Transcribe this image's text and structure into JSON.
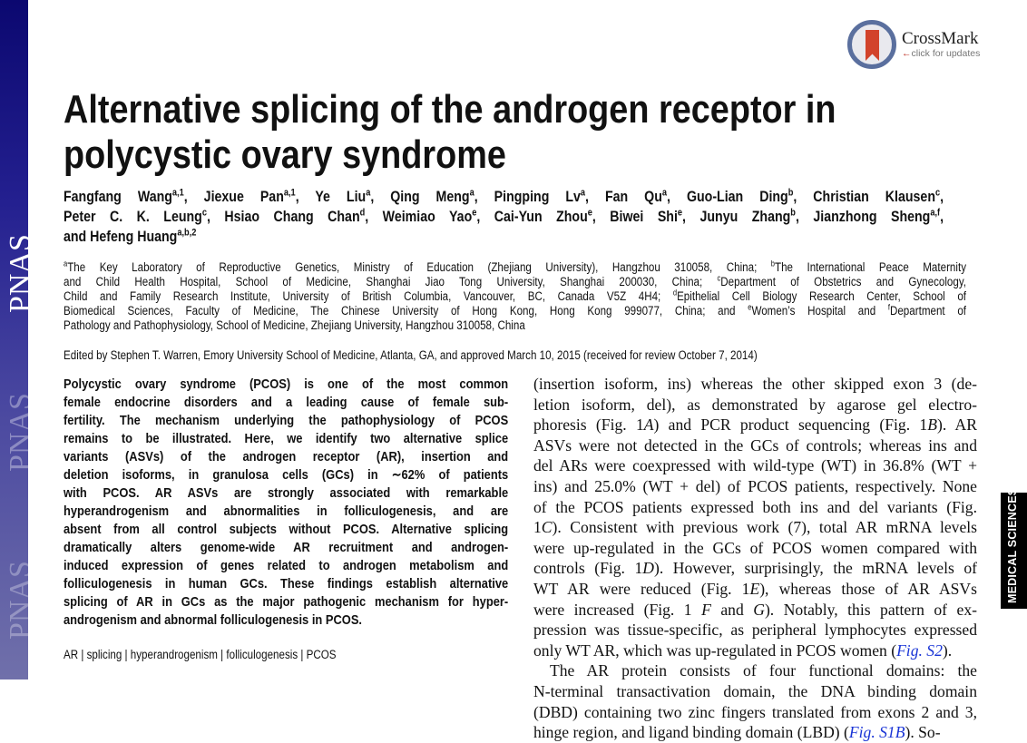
{
  "journal": {
    "logo_text": "PNAS",
    "section": "MEDICAL SCIENCES",
    "stripe_colors": [
      "#0b0870",
      "#7070aa"
    ]
  },
  "crossmark": {
    "title": "CrossMark",
    "subtitle": "click for updates",
    "ribbon_color": "#d2432b"
  },
  "title": [
    [
      "Alternative splicing of the androgen receptor in"
    ],
    [
      "polycystic ovary syndrome"
    ]
  ],
  "authors": [
    [
      {
        "t": "Fangfang Wang"
      },
      {
        "t": "a,1",
        "s": "sup"
      },
      {
        "t": ", Jiexue Pan"
      },
      {
        "t": "a,1",
        "s": "sup"
      },
      {
        "t": ", Ye Liu"
      },
      {
        "t": "a",
        "s": "sup"
      },
      {
        "t": ", Qing Meng"
      },
      {
        "t": "a",
        "s": "sup"
      },
      {
        "t": ", Pingping Lv"
      },
      {
        "t": "a",
        "s": "sup"
      },
      {
        "t": ", Fan Qu"
      },
      {
        "t": "a",
        "s": "sup"
      },
      {
        "t": ", Guo-Lian Ding"
      },
      {
        "t": "b",
        "s": "sup"
      },
      {
        "t": ", Christian Klausen"
      },
      {
        "t": "c",
        "s": "sup"
      },
      {
        "t": ","
      }
    ],
    [
      {
        "t": "Peter C. K. Leung"
      },
      {
        "t": "c",
        "s": "sup"
      },
      {
        "t": ", Hsiao Chang Chan"
      },
      {
        "t": "d",
        "s": "sup"
      },
      {
        "t": ", Weimiao Yao"
      },
      {
        "t": "e",
        "s": "sup"
      },
      {
        "t": ", Cai-Yun Zhou"
      },
      {
        "t": "e",
        "s": "sup"
      },
      {
        "t": ", Biwei Shi"
      },
      {
        "t": "e",
        "s": "sup"
      },
      {
        "t": ", Junyu Zhang"
      },
      {
        "t": "b",
        "s": "sup"
      },
      {
        "t": ", Jianzhong Sheng"
      },
      {
        "t": "a,f",
        "s": "sup"
      },
      {
        "t": ","
      }
    ],
    [
      {
        "t": "and Hefeng Huang"
      },
      {
        "t": "a,b,2",
        "s": "sup"
      }
    ]
  ],
  "affiliations": [
    [
      {
        "t": "a",
        "s": "sup"
      },
      {
        "t": "The Key Laboratory of Reproductive Genetics, Ministry of Education (Zhejiang University), Hangzhou 310058, China; "
      },
      {
        "t": "b",
        "s": "sup"
      },
      {
        "t": "The International Peace Maternity"
      }
    ],
    [
      {
        "t": "and Child Health Hospital, School of Medicine, Shanghai Jiao Tong University, Shanghai 200030, China; "
      },
      {
        "t": "c",
        "s": "sup"
      },
      {
        "t": "Department of Obstetrics and Gynecology,"
      }
    ],
    [
      {
        "t": "Child and Family Research Institute, University of British Columbia, Vancouver, BC, Canada V5Z 4H4; "
      },
      {
        "t": "d",
        "s": "sup"
      },
      {
        "t": "Epithelial Cell Biology Research Center, School of"
      }
    ],
    [
      {
        "t": "Biomedical Sciences, Faculty of Medicine, The Chinese University of Hong Kong, Hong Kong 999077, China; and "
      },
      {
        "t": "e",
        "s": "sup"
      },
      {
        "t": "Women’s Hospital and "
      },
      {
        "t": "f",
        "s": "sup"
      },
      {
        "t": "Department of"
      }
    ],
    [
      {
        "t": "Pathology and Pathophysiology, School of Medicine, Zhejiang University, Hangzhou 310058, China"
      }
    ]
  ],
  "edited_by": [
    [
      "Edited by Stephen T. Warren, Emory University School of Medicine, Atlanta, GA, and approved March 10, 2015 (received for review October 7, 2014)"
    ]
  ],
  "abstract": [
    [
      "Polycystic ovary syndrome (PCOS) is one of the most common"
    ],
    [
      "female endocrine disorders and a leading cause of female sub-"
    ],
    [
      "fertility. The mechanism underlying the pathophysiology of PCOS"
    ],
    [
      "remains to be illustrated. Here, we identify two alternative splice"
    ],
    [
      "variants (ASVs) of the androgen receptor (AR), insertion and"
    ],
    [
      "deletion isoforms, in granulosa cells (GCs) in ∼62% of patients"
    ],
    [
      "with PCOS. AR ASVs are strongly associated with remarkable"
    ],
    [
      "hyperandrogenism and abnormalities in folliculogenesis, and are"
    ],
    [
      "absent from all control subjects without PCOS. Alternative splicing"
    ],
    [
      "dramatically alters genome-wide AR recruitment and androgen-"
    ],
    [
      "induced expression of genes related to androgen metabolism and"
    ],
    [
      "folliculogenesis in human GCs. These findings establish alternative"
    ],
    [
      "splicing of AR in GCs as the major pathogenic mechanism for hyper-"
    ],
    [
      "androgenism and abnormal folliculogenesis in PCOS."
    ]
  ],
  "keywords": [
    [
      "AR | splicing | hyperandrogenism | folliculogenesis | PCOS"
    ]
  ],
  "body": [
    [
      "(insertion isoform, ins) whereas the other skipped exon 3 (de-"
    ],
    [
      "letion isoform, del), as demonstrated by agarose gel electro-"
    ],
    [
      {
        "t": "phoresis (Fig. 1"
      },
      {
        "t": "A",
        "s": "i"
      },
      {
        "t": ") and PCR product sequencing (Fig. 1"
      },
      {
        "t": "B",
        "s": "i"
      },
      {
        "t": "). AR"
      }
    ],
    [
      "ASVs were not detected in the GCs of controls; whereas ins and"
    ],
    [
      "del ARs were coexpressed with wild-type (WT) in 36.8% (WT +"
    ],
    [
      "ins) and 25.0% (WT + del) of PCOS patients, respectively. None"
    ],
    [
      "of the PCOS patients expressed both ins and del variants (Fig."
    ],
    [
      {
        "t": "1"
      },
      {
        "t": "C",
        "s": "i"
      },
      {
        "t": "). Consistent with previous work (7), total AR mRNA levels"
      }
    ],
    [
      "were up-regulated in the GCs of PCOS women compared with"
    ],
    [
      {
        "t": "controls (Fig. 1"
      },
      {
        "t": "D",
        "s": "i"
      },
      {
        "t": "). However, surprisingly, the mRNA levels of"
      }
    ],
    [
      {
        "t": "WT AR were reduced (Fig. 1"
      },
      {
        "t": "E",
        "s": "i"
      },
      {
        "t": "), whereas those of AR ASVs"
      }
    ],
    [
      {
        "t": "were increased (Fig. 1 "
      },
      {
        "t": "F",
        "s": "i"
      },
      {
        "t": " and "
      },
      {
        "t": "G",
        "s": "i"
      },
      {
        "t": "). Notably, this pattern of ex-"
      }
    ],
    [
      "pression was tissue-specific, as peripheral lymphocytes expressed"
    ],
    [
      {
        "t": "only WT AR, which was up-regulated in PCOS women ("
      },
      {
        "t": "Fig. S2",
        "s": "link"
      },
      {
        "t": ")."
      }
    ],
    [
      "The AR protein consists of four functional domains: the"
    ],
    [
      "N-terminal transactivation domain, the DNA binding domain"
    ],
    [
      "(DBD) containing two zinc fingers translated from exons 2 and 3,"
    ],
    [
      {
        "t": "hinge region, and ligand binding domain (LBD) ("
      },
      {
        "t": "Fig. S1",
        "s": "link"
      },
      {
        "t": "B",
        "s": "link i"
      },
      {
        "t": "). So-"
      }
    ]
  ],
  "colors": {
    "link": "#1a35d6",
    "section_tab": "#000000"
  }
}
